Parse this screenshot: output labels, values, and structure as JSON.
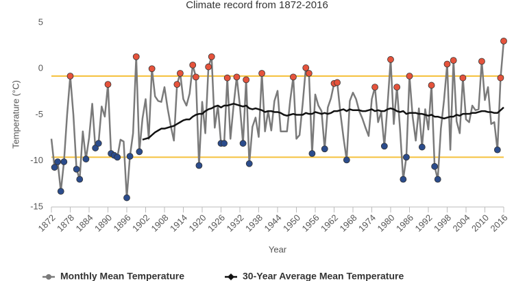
{
  "chart_data": {
    "type": "line",
    "title": "Climate record from 1872-2016",
    "x_label": "Year",
    "y_label": "Temperature (°C)",
    "x": [
      1872,
      1873,
      1874,
      1875,
      1876,
      1877,
      1878,
      1879,
      1880,
      1881,
      1882,
      1883,
      1884,
      1885,
      1886,
      1887,
      1888,
      1889,
      1890,
      1891,
      1892,
      1893,
      1894,
      1895,
      1896,
      1897,
      1898,
      1899,
      1900,
      1901,
      1902,
      1903,
      1904,
      1905,
      1906,
      1907,
      1908,
      1909,
      1910,
      1911,
      1912,
      1913,
      1914,
      1915,
      1916,
      1917,
      1918,
      1919,
      1920,
      1921,
      1922,
      1923,
      1924,
      1925,
      1926,
      1927,
      1928,
      1929,
      1930,
      1931,
      1932,
      1933,
      1934,
      1935,
      1936,
      1937,
      1938,
      1939,
      1940,
      1941,
      1942,
      1943,
      1944,
      1945,
      1946,
      1947,
      1948,
      1949,
      1950,
      1951,
      1952,
      1953,
      1954,
      1955,
      1956,
      1957,
      1958,
      1959,
      1960,
      1961,
      1962,
      1963,
      1964,
      1965,
      1966,
      1967,
      1968,
      1969,
      1970,
      1971,
      1972,
      1973,
      1974,
      1975,
      1976,
      1977,
      1978,
      1979,
      1980,
      1981,
      1982,
      1983,
      1984,
      1985,
      1986,
      1987,
      1988,
      1989,
      1990,
      1991,
      1992,
      1993,
      1994,
      1995,
      1996,
      1997,
      1998,
      1999,
      2000,
      2001,
      2002,
      2003,
      2004,
      2005,
      2006,
      2007,
      2008,
      2009,
      2010,
      2011,
      2012,
      2013,
      2014,
      2015,
      2016
    ],
    "series": [
      {
        "name": "Monthly Mean Temperature",
        "color": "#7a7a7a",
        "values": [
          -7.6,
          -10.7,
          -10.1,
          -13.3,
          -10.1,
          -5,
          -0.8,
          -5,
          -10.9,
          -12,
          -6.8,
          -9.8,
          -7.5,
          -3.8,
          -8.6,
          -8.1,
          -4.1,
          -5.2,
          -1.7,
          -9.2,
          -9.4,
          -9.6,
          -7.7,
          -7.9,
          -14,
          -9.5,
          -7,
          1.3,
          -9,
          -5.4,
          -3.3,
          -7.6,
          0,
          -3,
          -3.5,
          -3.6,
          -2,
          -4.3,
          -6.2,
          -7.8,
          -1.7,
          -0.5,
          -3.3,
          -4,
          -2.7,
          0.4,
          -0.9,
          -10.5,
          -3.6,
          -7,
          0.2,
          1.3,
          -6.4,
          -4,
          -8.1,
          -8.1,
          -1,
          -7.6,
          -4,
          -0.9,
          -4,
          -8.1,
          -1.2,
          -10.3,
          -6.3,
          -5.3,
          -7.4,
          -0.5,
          -6.8,
          -4.6,
          -6.7,
          -3.5,
          -2.4,
          -6.8,
          -6.8,
          -6.8,
          -3.5,
          -0.9,
          -7.6,
          -7.2,
          -3.8,
          0.1,
          -0.5,
          -9.2,
          -2.8,
          -4,
          -4.6,
          -8.7,
          -4.2,
          -3.2,
          -1.6,
          -1.5,
          -4.8,
          -7.5,
          -9.9,
          -3.5,
          -2.6,
          -3.3,
          -4.6,
          -5.4,
          -6.4,
          -7.3,
          -3.3,
          -2,
          -5.8,
          -4.7,
          -8.4,
          -4,
          1,
          -6,
          -2,
          -6.6,
          -12,
          -9.6,
          -0.8,
          -5.2,
          -7.8,
          -4.3,
          -8.5,
          -4.4,
          -6.6,
          -1.8,
          -10.6,
          -12,
          -6.5,
          -3.4,
          0.5,
          -8.8,
          0.9,
          -5.7,
          -7,
          -1,
          -5.5,
          -5.8,
          -4,
          -4.5,
          -4.4,
          0.8,
          -3.4,
          -2,
          -6,
          -5.8,
          -8.8,
          -1,
          3
        ],
        "marker_colors": [
          null,
          "#2b4c8c",
          "#2b4c8c",
          "#2b4c8c",
          "#2b4c8c",
          null,
          "#e5533c",
          null,
          "#2b4c8c",
          "#2b4c8c",
          null,
          "#2b4c8c",
          null,
          null,
          "#2b4c8c",
          "#2b4c8c",
          null,
          null,
          "#e5533c",
          "#2b4c8c",
          "#2b4c8c",
          "#2b4c8c",
          null,
          null,
          "#2b4c8c",
          "#2b4c8c",
          null,
          "#e5533c",
          "#2b4c8c",
          null,
          null,
          null,
          "#e5533c",
          null,
          null,
          null,
          null,
          null,
          null,
          null,
          "#e5533c",
          "#e5533c",
          null,
          null,
          null,
          "#e5533c",
          "#e5533c",
          "#2b4c8c",
          null,
          null,
          "#e5533c",
          "#e5533c",
          null,
          null,
          "#2b4c8c",
          "#2b4c8c",
          "#e5533c",
          null,
          null,
          "#e5533c",
          null,
          "#2b4c8c",
          "#e5533c",
          "#2b4c8c",
          null,
          null,
          null,
          "#e5533c",
          null,
          null,
          null,
          null,
          null,
          null,
          null,
          null,
          null,
          "#e5533c",
          null,
          null,
          null,
          "#e5533c",
          "#e5533c",
          "#2b4c8c",
          null,
          null,
          null,
          "#2b4c8c",
          null,
          null,
          "#e5533c",
          "#e5533c",
          null,
          null,
          "#2b4c8c",
          null,
          null,
          null,
          null,
          null,
          null,
          null,
          null,
          "#e5533c",
          null,
          null,
          "#2b4c8c",
          null,
          "#e5533c",
          null,
          "#e5533c",
          null,
          "#2b4c8c",
          "#2b4c8c",
          "#e5533c",
          null,
          null,
          null,
          "#2b4c8c",
          null,
          null,
          "#e5533c",
          "#2b4c8c",
          "#2b4c8c",
          null,
          null,
          "#e5533c",
          null,
          "#e5533c",
          null,
          null,
          "#e5533c",
          null,
          null,
          null,
          null,
          null,
          "#e5533c",
          null,
          null,
          null,
          null,
          "#2b4c8c",
          "#e5533c",
          "#e5533c"
        ]
      },
      {
        "name": "30-Year Average Mean Temperature",
        "color": "#111111",
        "values": [
          null,
          null,
          null,
          null,
          null,
          null,
          null,
          null,
          null,
          null,
          null,
          null,
          null,
          null,
          null,
          null,
          null,
          null,
          null,
          null,
          null,
          null,
          null,
          null,
          null,
          null,
          null,
          null,
          null,
          -7.7,
          -7.6,
          -7.5,
          -7.2,
          -6.9,
          -6.7,
          -6.5,
          -6.5,
          -6.4,
          -6.3,
          -6.2,
          -6.0,
          -5.8,
          -5.6,
          -5.5,
          -5.5,
          -5.2,
          -5.0,
          -4.9,
          -4.9,
          -4.6,
          -4.4,
          -4.3,
          -4.1,
          -4.0,
          -4.2,
          -4.0,
          -4.0,
          -3.9,
          -3.8,
          -3.9,
          -4.0,
          -4.1,
          -4.0,
          -4.3,
          -4.4,
          -4.3,
          -4.4,
          -4.5,
          -4.7,
          -4.6,
          -4.6,
          -4.7,
          -4.7,
          -4.8,
          -5.0,
          -5.1,
          -5.0,
          -4.9,
          -5.0,
          -5.0,
          -5.0,
          -4.8,
          -4.9,
          -4.9,
          -4.7,
          -4.8,
          -4.9,
          -4.8,
          -4.9,
          -4.8,
          -4.6,
          -4.6,
          -4.5,
          -4.4,
          -4.6,
          -4.4,
          -4.5,
          -4.5,
          -4.5,
          -4.6,
          -4.6,
          -4.5,
          -4.4,
          -4.6,
          -4.5,
          -4.6,
          -4.6,
          -4.4,
          -4.3,
          -4.4,
          -4.6,
          -4.7,
          -4.6,
          -4.9,
          -4.8,
          -4.8,
          -4.8,
          -4.9,
          -4.9,
          -5.0,
          -5.1,
          -5.0,
          -5.2,
          -5.2,
          -5.3,
          -5.4,
          -5.3,
          -5.2,
          -5.2,
          -5.0,
          -5.1,
          -4.9,
          -4.9,
          -4.9,
          -4.8,
          -4.8,
          -4.7,
          -4.6,
          -4.6,
          -4.7,
          -4.7,
          -4.8,
          -4.8,
          -4.5,
          -4.2
        ]
      }
    ],
    "plot_lines": [
      -0.8,
      -9.6
    ],
    "plot_line_color": "#f5c13d",
    "xlim": [
      1872,
      2016
    ],
    "xticks": [
      1872,
      1878,
      1884,
      1890,
      1896,
      1902,
      1908,
      1914,
      1920,
      1926,
      1932,
      1938,
      1944,
      1950,
      1956,
      1962,
      1968,
      1974,
      1980,
      1986,
      1992,
      1998,
      2004,
      2010,
      2016
    ],
    "ylim": [
      -15,
      5
    ],
    "yticks": [
      -15,
      -10,
      -5,
      0,
      5
    ],
    "legend": "bottom"
  }
}
